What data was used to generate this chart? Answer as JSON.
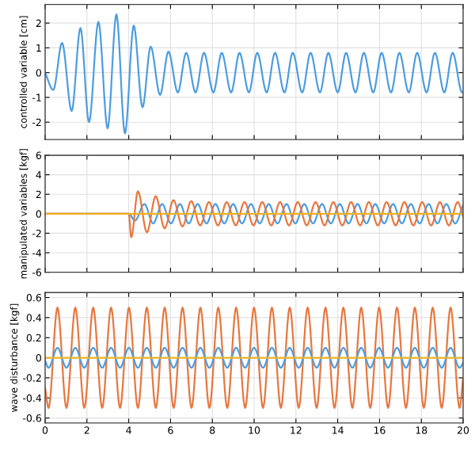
{
  "chart_data": [
    {
      "type": "line",
      "ylabel": "controlled variable [cm]",
      "xlim": [
        0,
        20
      ],
      "xticks": [
        0,
        2,
        4,
        6,
        8,
        10,
        12,
        14,
        16,
        18,
        20
      ],
      "ylim": [
        -2.7,
        2.75
      ],
      "yticks": [
        -2,
        -1,
        0,
        1,
        2
      ],
      "grid": true,
      "tick_labels": "y",
      "series": [
        {
          "color": "#4d9de0",
          "x": [
            0,
            0.39,
            0.81,
            1.27,
            1.69,
            2.1,
            2.55,
            2.99,
            3.41,
            3.82,
            4.24,
            4.66,
            5.05,
            5.5,
            5.9,
            6.35,
            6.75,
            7.2,
            7.6,
            8.05,
            8.45,
            8.9,
            9.3,
            9.75,
            10.15,
            10.6,
            11.0,
            11.45,
            11.85,
            12.3,
            12.7,
            13.15,
            13.55,
            14.0,
            14.4,
            14.85,
            15.25,
            15.7,
            16.1,
            16.55,
            16.95,
            17.4,
            17.8,
            18.25,
            18.65,
            19.1,
            19.5,
            19.95,
            20
          ],
          "values": [
            0,
            -0.7,
            1.2,
            -1.55,
            1.8,
            -2.0,
            2.05,
            -2.25,
            2.35,
            -2.45,
            1.9,
            -1.4,
            1.05,
            -0.9,
            0.85,
            -0.8,
            0.8,
            -0.8,
            0.8,
            -0.8,
            0.8,
            -0.8,
            0.8,
            -0.8,
            0.8,
            -0.8,
            0.8,
            -0.8,
            0.8,
            -0.8,
            0.8,
            -0.8,
            0.8,
            -0.8,
            0.8,
            -0.8,
            0.8,
            -0.8,
            0.8,
            -0.8,
            0.8,
            -0.8,
            0.8,
            -0.8,
            0.8,
            -0.8,
            0.8,
            -0.8,
            -0.78
          ]
        }
      ]
    },
    {
      "type": "line",
      "ylabel": "manipulated variables [kgf]",
      "xlim": [
        0,
        20
      ],
      "xticks": [
        0,
        2,
        4,
        6,
        8,
        10,
        12,
        14,
        16,
        18,
        20
      ],
      "ylim": [
        -6,
        6
      ],
      "yticks": [
        -6,
        -4,
        -2,
        0,
        2,
        4,
        6
      ],
      "grid": true,
      "tick_labels": "y",
      "series": [
        {
          "color": "#4d9de0",
          "x": [
            0,
            4.0,
            4.3,
            4.75,
            5.17,
            5.6,
            6.02,
            6.45,
            6.87,
            7.3,
            7.72,
            8.15,
            8.57,
            9.0,
            9.42,
            9.85,
            10.27,
            10.7,
            11.12,
            11.55,
            11.97,
            12.4,
            12.82,
            13.25,
            13.67,
            14.1,
            14.52,
            14.95,
            15.37,
            15.8,
            16.22,
            16.65,
            17.07,
            17.5,
            17.92,
            18.35,
            18.77,
            19.2,
            19.62,
            20
          ],
          "values": [
            0,
            0,
            -0.7,
            1.0,
            -1.0,
            1.0,
            -1.0,
            1.0,
            -1.0,
            1.0,
            -1.0,
            1.0,
            -1.0,
            1.0,
            -1.0,
            1.0,
            -1.0,
            1.0,
            -1.0,
            1.0,
            -1.0,
            1.0,
            -1.0,
            1.0,
            -1.0,
            1.0,
            -1.0,
            1.0,
            -1.0,
            1.0,
            -1.0,
            1.0,
            -1.0,
            1.0,
            -1.0,
            1.0,
            -1.0,
            1.0,
            -1.0,
            0.9
          ]
        },
        {
          "color": "#e8773f",
          "x": [
            0,
            4.0,
            4.12,
            4.44,
            4.87,
            5.29,
            5.72,
            6.14,
            6.57,
            6.99,
            7.42,
            7.84,
            8.27,
            8.69,
            9.12,
            9.54,
            9.97,
            10.39,
            10.82,
            11.24,
            11.67,
            12.09,
            12.52,
            12.94,
            13.37,
            13.79,
            14.22,
            14.64,
            15.07,
            15.49,
            15.92,
            16.34,
            16.77,
            17.19,
            17.62,
            18.04,
            18.47,
            18.89,
            19.32,
            19.74,
            20
          ],
          "values": [
            0,
            0,
            -2.4,
            2.3,
            -1.9,
            1.8,
            -1.5,
            1.4,
            -1.3,
            1.3,
            -1.2,
            1.2,
            -1.2,
            1.2,
            -1.2,
            1.2,
            -1.2,
            1.2,
            -1.2,
            1.2,
            -1.2,
            1.2,
            -1.2,
            1.2,
            -1.2,
            1.2,
            -1.2,
            1.2,
            -1.2,
            1.2,
            -1.2,
            1.2,
            -1.2,
            1.2,
            -1.2,
            1.2,
            -1.2,
            1.2,
            -1.2,
            1.2,
            -0.3
          ]
        },
        {
          "color": "#edb120",
          "x": [
            0,
            20
          ],
          "values": [
            0,
            0
          ]
        }
      ]
    },
    {
      "type": "line",
      "ylabel": "wave disturbance [kgf]",
      "xlim": [
        0,
        20
      ],
      "xticks": [
        0,
        2,
        4,
        6,
        8,
        10,
        12,
        14,
        16,
        18,
        20
      ],
      "ylim": [
        -0.65,
        0.65
      ],
      "yticks": [
        -0.6,
        -0.4,
        -0.2,
        0,
        0.2,
        0.4,
        0.6
      ],
      "grid": true,
      "x": [
        0,
        0.165,
        0.59,
        1.02,
        1.445,
        1.875,
        2.3,
        2.73,
        3.155,
        3.585,
        4.01,
        4.44,
        4.865,
        5.295,
        5.72,
        6.15,
        6.575,
        7.005,
        7.43,
        7.86,
        8.285,
        8.715,
        9.14,
        9.57,
        9.995,
        10.425,
        10.85,
        11.28,
        11.705,
        12.135,
        12.56,
        12.99,
        13.415,
        13.845,
        14.27,
        14.7,
        15.125,
        15.555,
        15.98,
        16.41,
        16.835,
        17.265,
        17.69,
        18.12,
        18.545,
        18.975,
        19.4,
        19.83,
        20
      ],
      "series": [
        {
          "color": "#e8773f",
          "values": [
            -0.3,
            -0.5,
            0.5,
            -0.5,
            0.5,
            -0.5,
            0.5,
            -0.5,
            0.5,
            -0.5,
            0.5,
            -0.5,
            0.5,
            -0.5,
            0.5,
            -0.5,
            0.5,
            -0.5,
            0.5,
            -0.5,
            0.5,
            -0.5,
            0.5,
            -0.5,
            0.5,
            -0.5,
            0.5,
            -0.5,
            0.5,
            -0.5,
            0.5,
            -0.5,
            0.5,
            -0.5,
            0.5,
            -0.5,
            0.5,
            -0.5,
            0.5,
            -0.5,
            0.5,
            -0.5,
            0.5,
            -0.5,
            0.5,
            -0.5,
            0.5,
            -0.5,
            -0.2
          ]
        },
        {
          "color": "#4d9de0",
          "values": [
            -0.03,
            -0.1,
            0.1,
            -0.1,
            0.1,
            -0.1,
            0.1,
            -0.1,
            0.1,
            -0.1,
            0.1,
            -0.1,
            0.1,
            -0.1,
            0.1,
            -0.1,
            0.1,
            -0.1,
            0.1,
            -0.1,
            0.1,
            -0.1,
            0.1,
            -0.1,
            0.1,
            -0.1,
            0.1,
            -0.1,
            0.1,
            -0.1,
            0.1,
            -0.1,
            0.1,
            -0.1,
            0.1,
            -0.1,
            0.1,
            -0.1,
            0.1,
            -0.1,
            0.1,
            -0.1,
            0.1,
            -0.1,
            0.1,
            -0.1,
            0.1,
            -0.1,
            -0.05
          ]
        },
        {
          "color": "#edb120",
          "x": [
            0,
            20
          ],
          "values": [
            0,
            0
          ]
        }
      ]
    }
  ]
}
